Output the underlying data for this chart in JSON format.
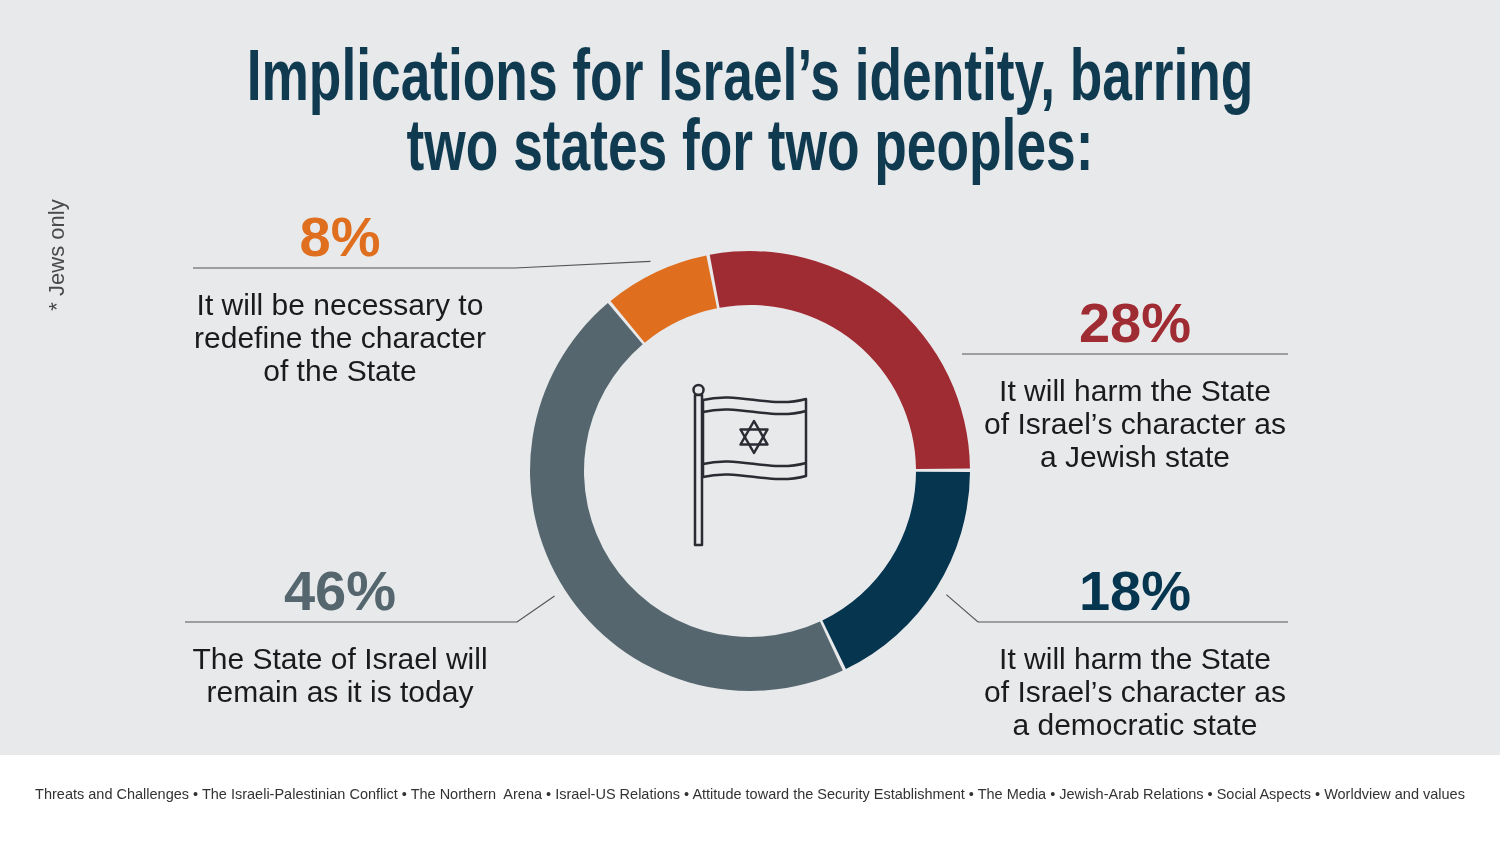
{
  "chart_data": {
    "type": "donut",
    "title": "Implications for Israel’s identity, barring two states for two peoples:",
    "categories": [
      "It will harm the State of Israel’s character as a Jewish state",
      "It will harm the State of Israel’s character as a democratic state",
      "The State of Israel will remain as it is today",
      "It will be necessary to redefine the character of the State"
    ],
    "values": [
      28,
      18,
      46,
      8
    ],
    "value_labels": [
      "28%",
      "18%",
      "46%",
      "8%"
    ],
    "colors": [
      "#a02c33",
      "#06364f",
      "#55666f",
      "#df6f1e"
    ],
    "annotations": [
      "* Jews only",
      "Threats and Challenges • The Israeli-Palestinian Conflict • The Northern  Arena • Israel-US Relations • Attitude toward the Security Establishment • The Media • Jewish-Arab Relations • Social Aspects • Worldview and values"
    ]
  }
}
